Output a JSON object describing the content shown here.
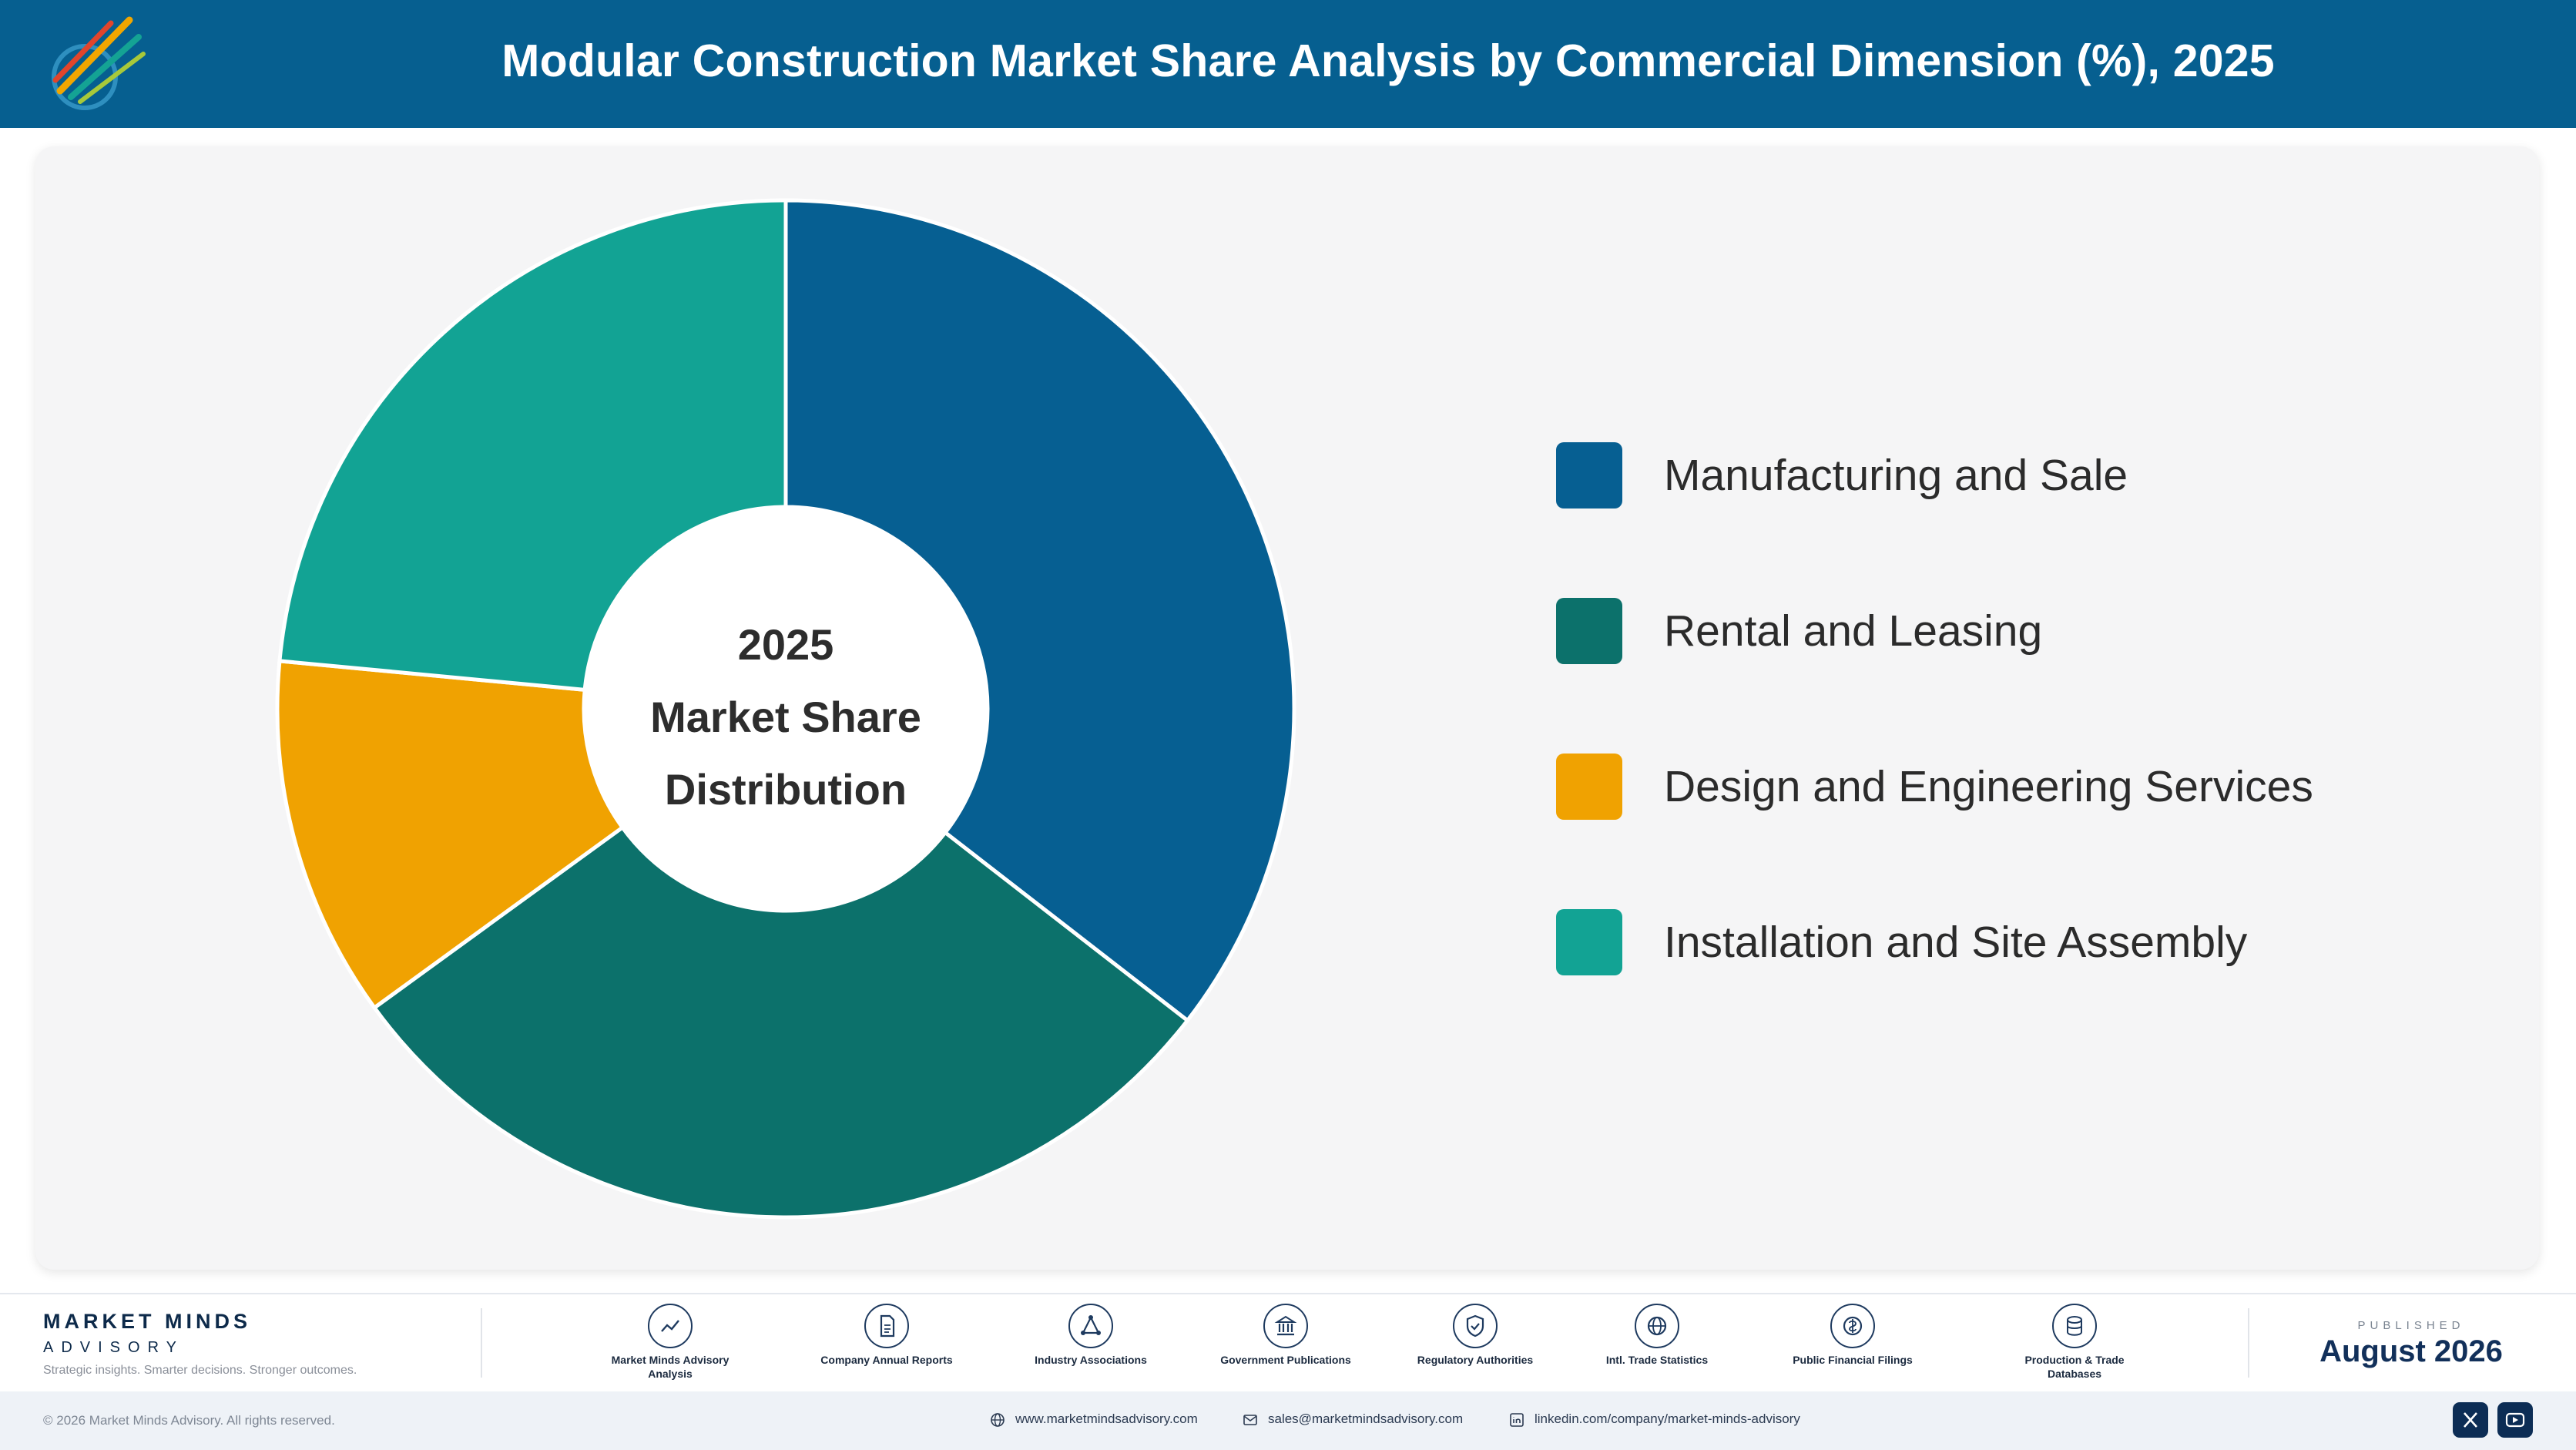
{
  "header": {
    "title": "Modular Construction Market Share Analysis by Commercial Dimension (%), 2025"
  },
  "chart_data": {
    "type": "pie",
    "variant": "donut",
    "title": "Modular Construction Market Share Analysis by Commercial Dimension (%), 2025",
    "center_label": [
      "2025",
      "Market Share",
      "Distribution"
    ],
    "categories": [
      "Manufacturing and Sale",
      "Rental and Leasing",
      "Design and Engineering Services",
      "Installation and Site Assembly"
    ],
    "values": [
      35.5,
      29.5,
      11.5,
      23.5
    ],
    "colors": [
      "#065f92",
      "#0c716b",
      "#f0a201",
      "#12a394"
    ],
    "legend_position": "right"
  },
  "footer": {
    "brand": {
      "name": "MARKET MINDS",
      "sub": "ADVISORY",
      "tagline": "Strategic insights. Smarter decisions. Stronger outcomes."
    },
    "sources": [
      {
        "icon": "trend-chart-icon",
        "label": "Market Minds Advisory Analysis"
      },
      {
        "icon": "document-icon",
        "label": "Company Annual Reports"
      },
      {
        "icon": "network-icon",
        "label": "Industry Associations"
      },
      {
        "icon": "government-building-icon",
        "label": "Government Publications"
      },
      {
        "icon": "shield-check-icon",
        "label": "Regulatory Authorities"
      },
      {
        "icon": "globe-icon",
        "label": "Intl. Trade Statistics"
      },
      {
        "icon": "currency-coin-icon",
        "label": "Public Financial Filings"
      },
      {
        "icon": "database-icon",
        "label": "Production & Trade Databases"
      }
    ],
    "published_label": "PUBLISHED",
    "published_date": "August 2026",
    "copyright": "© 2026 Market Minds Advisory. All rights reserved.",
    "website": "www.marketmindsadvisory.com",
    "email": "sales@marketmindsadvisory.com",
    "linkedin": "linkedin.com/company/market-minds-advisory",
    "social": [
      "x-icon",
      "youtube-icon"
    ]
  }
}
